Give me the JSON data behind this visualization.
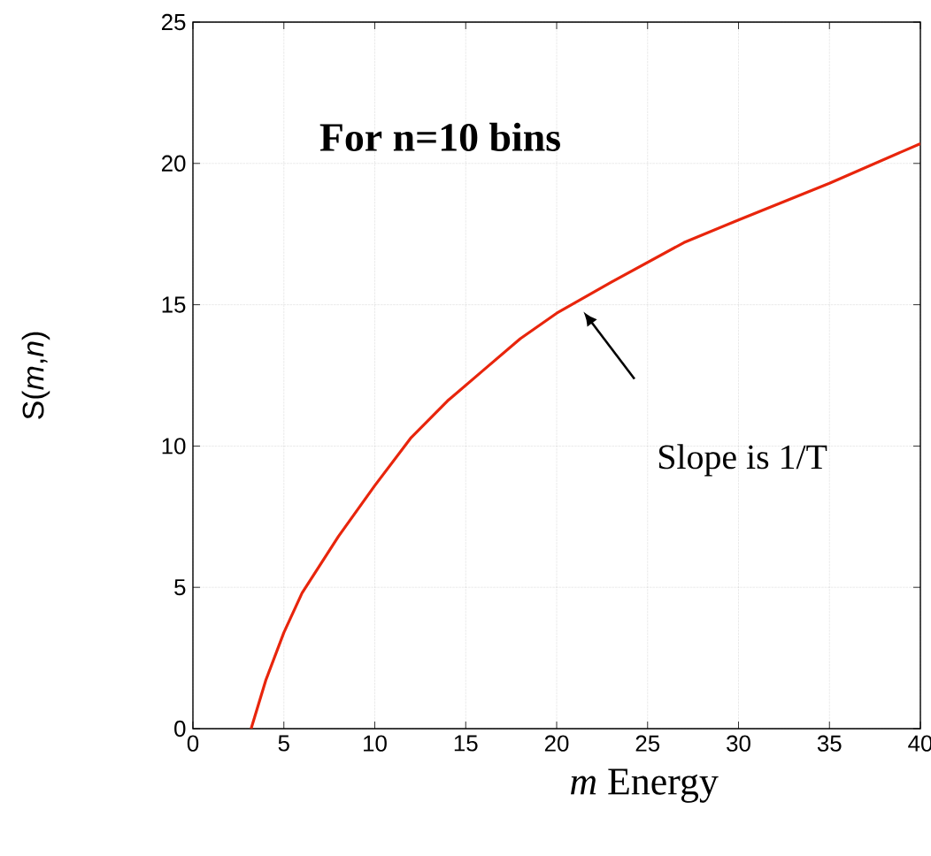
{
  "chart_data": {
    "type": "line",
    "title": "**For n=10 bins**",
    "xlabel": "*m*  Energy",
    "ylabel": "S(*m*,*n*)",
    "x": [
      3.2,
      4,
      5,
      6,
      8,
      10,
      12,
      14,
      16,
      18,
      20,
      23,
      27,
      30,
      35,
      40
    ],
    "series": [
      {
        "color": "#e8250c",
        "values": [
          0,
          1.7,
          3.4,
          4.8,
          6.8,
          8.6,
          10.3,
          11.6,
          12.7,
          13.8,
          14.7,
          15.8,
          17.2,
          18.0,
          19.3,
          20.7
        ]
      }
    ],
    "annotations": [
      "Slope is 1/T"
    ],
    "xlim": [
      0,
      40
    ],
    "ylim": [
      0,
      25
    ],
    "xticks": [
      0,
      5,
      10,
      15,
      20,
      25,
      30,
      35,
      40
    ],
    "yticks": [
      0,
      5,
      10,
      15,
      20,
      25
    ],
    "grid": true,
    "marker": "none",
    "line_style": "solid"
  }
}
